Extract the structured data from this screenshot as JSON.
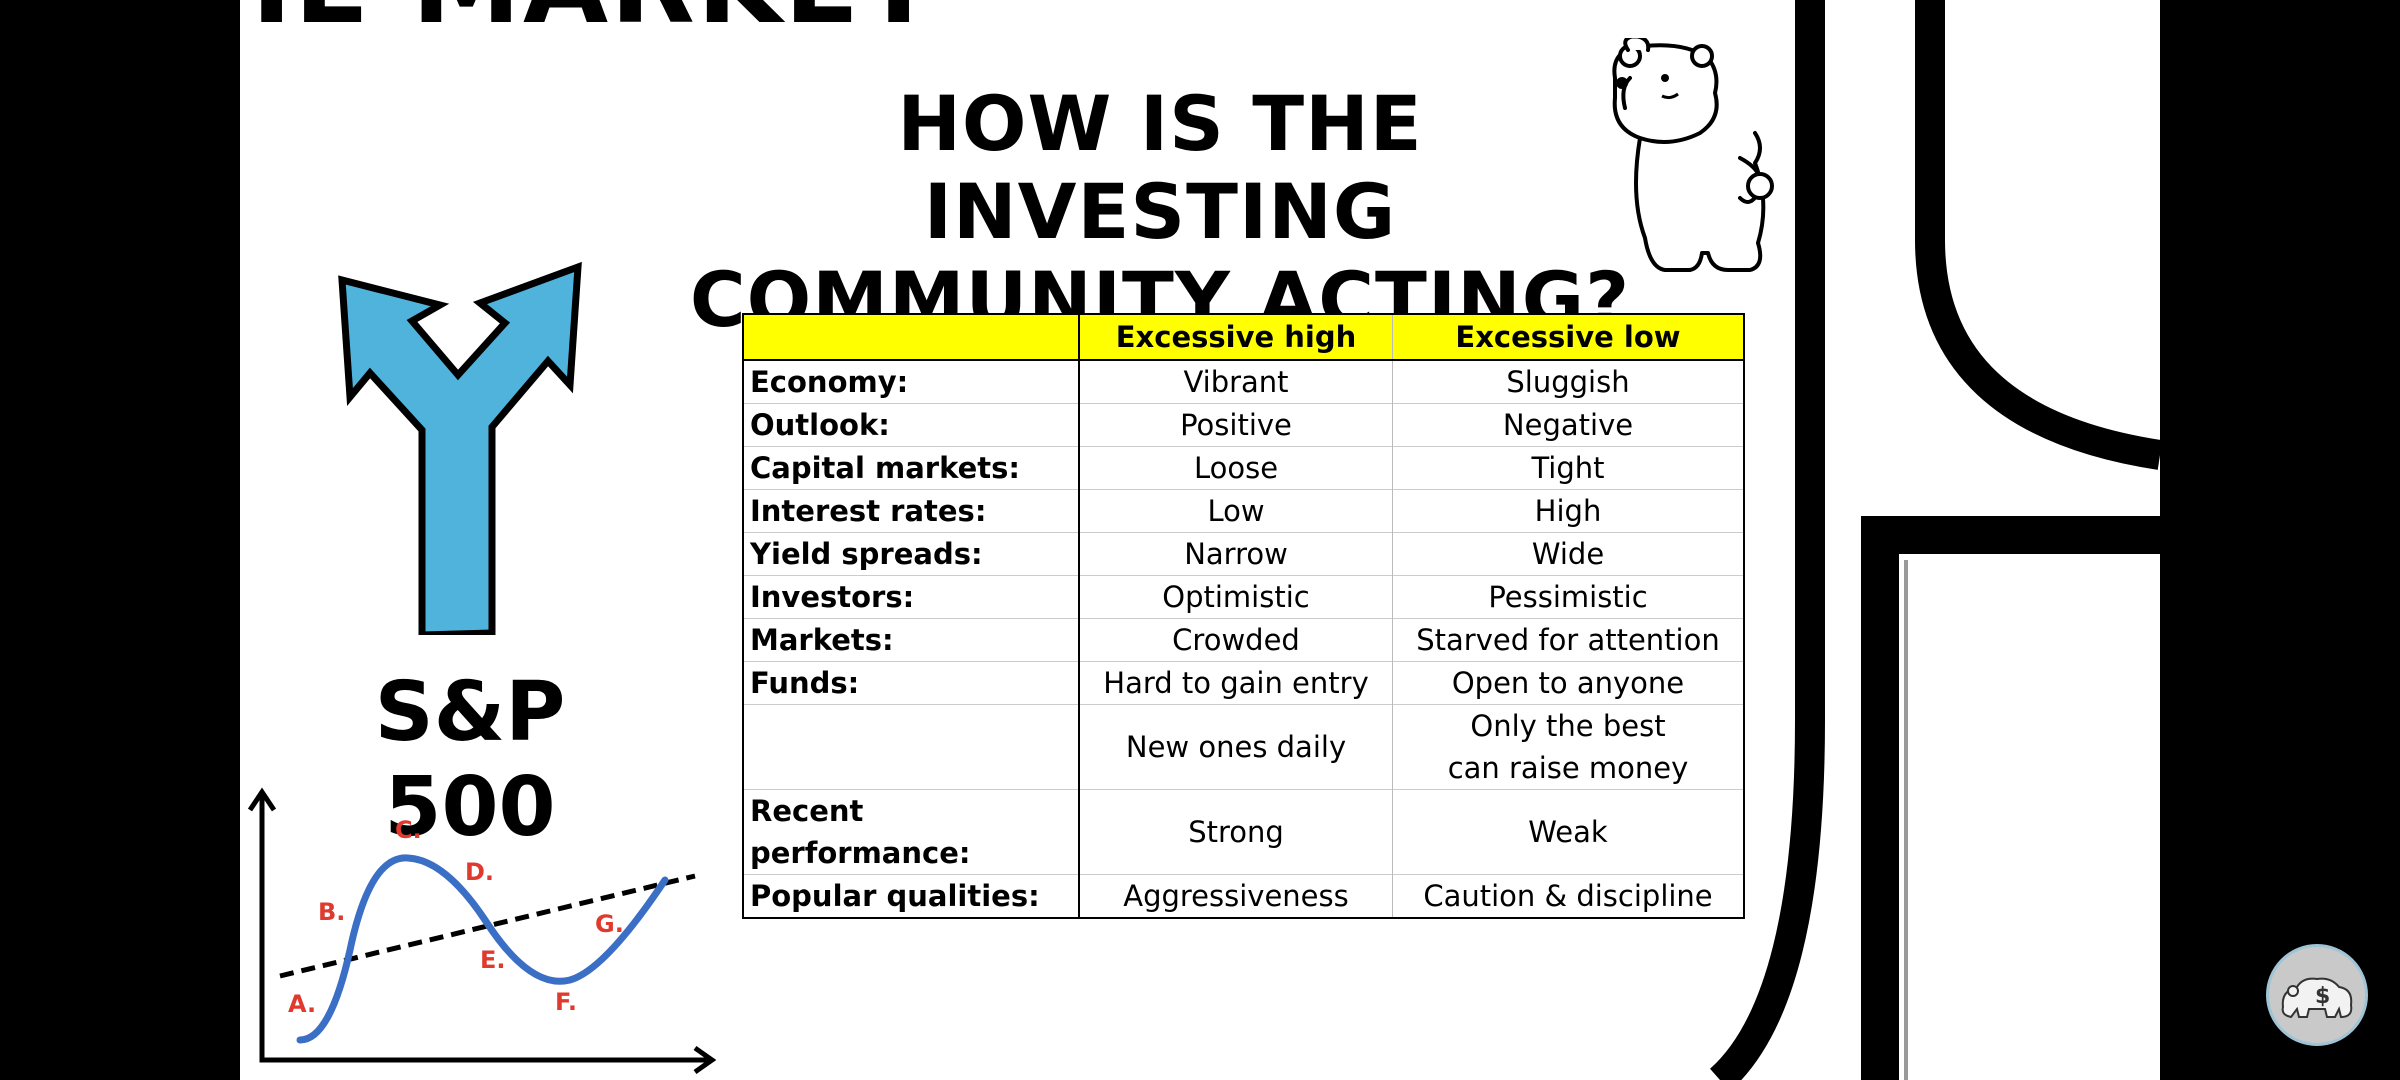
{
  "slide": {
    "top_cut_title": "HE MARKET",
    "main_title_line1": "HOW IS THE INVESTING",
    "main_title_line2": "COMMUNITY ACTING?",
    "sp_label": "S&P 500"
  },
  "table": {
    "headers": [
      "",
      "Excessive high",
      "Excessive low"
    ],
    "rows": [
      {
        "label": "Economy:",
        "high": "Vibrant",
        "low": "Sluggish"
      },
      {
        "label": "Outlook:",
        "high": "Positive",
        "low": "Negative"
      },
      {
        "label": "Capital markets:",
        "high": "Loose",
        "low": "Tight"
      },
      {
        "label": "Interest rates:",
        "high": "Low",
        "low": "High"
      },
      {
        "label": "Yield spreads:",
        "high": "Narrow",
        "low": "Wide"
      },
      {
        "label": "Investors:",
        "high": "Optimistic",
        "low": "Pessimistic"
      },
      {
        "label": "Markets:",
        "high": "Crowded",
        "low": "Starved for attention"
      },
      {
        "label": "Funds:",
        "high": "Hard to gain entry",
        "low": "Open to anyone"
      },
      {
        "label": "",
        "high": "New ones daily",
        "low_line1": "Only the best",
        "low_line2": "can raise money"
      },
      {
        "label": "Recent performance:",
        "high": "Strong",
        "low": "Weak"
      },
      {
        "label": "Popular qualities:",
        "high": "Aggressiveness",
        "low": "Caution & discipline"
      }
    ]
  },
  "cycle_chart": {
    "points": [
      "A.",
      "B.",
      "C.",
      "D.",
      "E.",
      "F.",
      "G."
    ]
  },
  "icons": {
    "bear": "thinking-bear-icon",
    "arrow": "fork-arrow-icon",
    "badge": "bear-dollar-badge-icon"
  },
  "colors": {
    "header_fill": "#ffff00",
    "arrow_fill": "#4fb3dc",
    "curve": "#3b6fc6",
    "point_labels": "#e03a2f"
  }
}
